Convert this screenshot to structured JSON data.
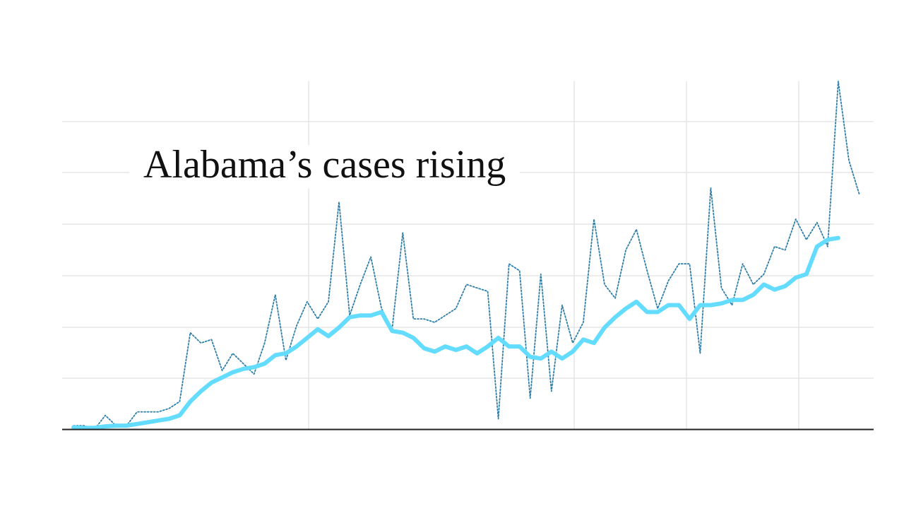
{
  "chart_data": {
    "type": "line",
    "title": "Alabama’s cases rising",
    "xlabel": "",
    "ylabel": "",
    "grid": true,
    "colors": {
      "daily": "#2f7fa8",
      "average": "#63dcff",
      "grid": "#e6e6e6",
      "axis": "#222222"
    },
    "series": [
      {
        "key": "daily",
        "style": "dotted",
        "values": [
          1,
          1,
          0,
          4,
          1,
          1,
          5,
          5,
          5,
          6,
          8,
          28,
          25,
          26,
          17,
          22,
          19,
          16,
          25,
          39,
          20,
          30,
          37,
          32,
          37,
          66,
          33,
          42,
          50,
          35,
          29,
          57,
          32,
          32,
          31,
          33,
          35,
          42,
          41,
          40,
          3,
          48,
          46,
          9,
          45,
          11,
          36,
          25,
          31,
          61,
          42,
          38,
          52,
          58,
          46,
          35,
          43,
          48,
          48,
          22,
          70,
          41,
          36,
          48,
          42,
          45,
          53,
          52,
          61,
          55,
          60,
          53,
          101,
          78,
          68
        ],
        "x_index": [
          0,
          1,
          2,
          3,
          4,
          5,
          6,
          7,
          8,
          9,
          10,
          11,
          12,
          13,
          14,
          15,
          16,
          17,
          18,
          19,
          20,
          21,
          22,
          23,
          24,
          25,
          26,
          27,
          28,
          29,
          30,
          31,
          32,
          33,
          34,
          35,
          36,
          37,
          38,
          39,
          40,
          41,
          42,
          43,
          44,
          45,
          46,
          47,
          48,
          49,
          50,
          51,
          52,
          53,
          54,
          55,
          56,
          57,
          58,
          59,
          60,
          61,
          62,
          63,
          64,
          65,
          66,
          67,
          68,
          69,
          70,
          71,
          72,
          73,
          74
        ]
      },
      {
        "key": "average",
        "style": "solid",
        "values": [
          0.5,
          0.3,
          0.4,
          0.8,
          1,
          1,
          1.5,
          2,
          2.5,
          3,
          4,
          8,
          11,
          13.5,
          15,
          16.5,
          17.5,
          18,
          19,
          21.5,
          22,
          24,
          26.5,
          29,
          27,
          29.5,
          32.5,
          33,
          33,
          34,
          28.5,
          28,
          26.5,
          23.5,
          22.5,
          24,
          23,
          24,
          22,
          24,
          26.5,
          24,
          24,
          21,
          20.5,
          22.5,
          20.5,
          22.5,
          26,
          25,
          29.5,
          32.5,
          35,
          37,
          34,
          34,
          36,
          36,
          32,
          36,
          36,
          36.5,
          37.5,
          37.5,
          39,
          42,
          40.5,
          41.5,
          44,
          45,
          53,
          55,
          55.5
        ]
      }
    ],
    "ylim": [
      0,
      101
    ],
    "xlim": [
      0,
      74
    ]
  }
}
